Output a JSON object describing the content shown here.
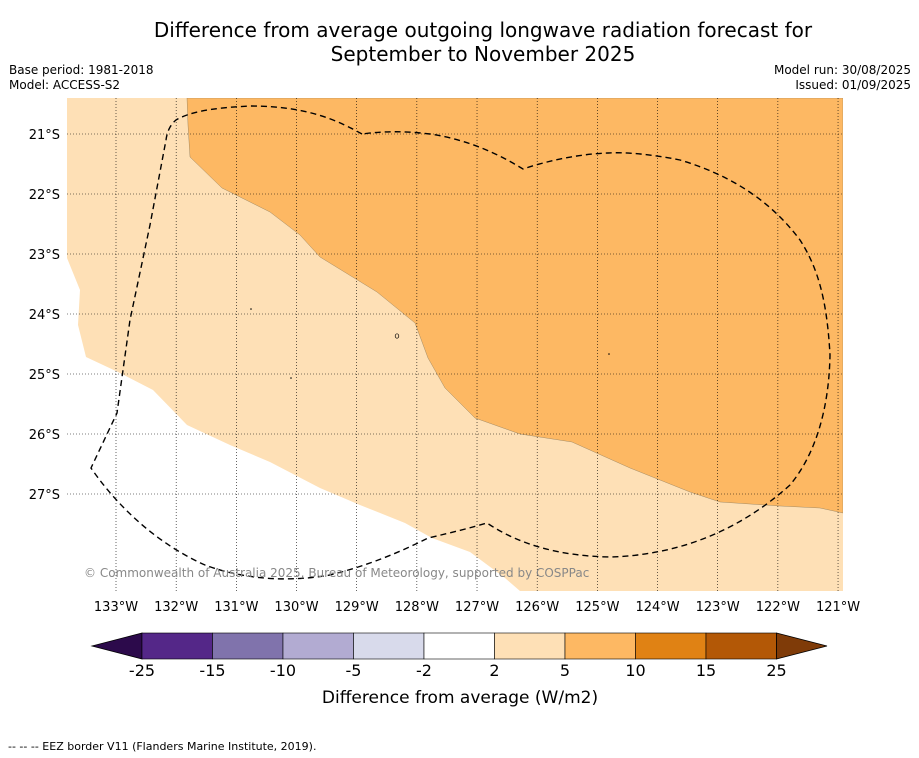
{
  "title_line1": "Difference from average outgoing longwave radiation forecast for",
  "title_line2": "September to November 2025",
  "base_period": "Base period: 1981-2018",
  "model": "Model: ACCESS-S2",
  "model_run": "Model run: 30/08/2025",
  "issued": "Issued: 01/09/2025",
  "copyright": "© Commonwealth of Australia 2025, Bureau of Meteorology, supported by COSPPac",
  "footnote": "-- -- -- EEZ border V11 (Flanders Marine Institute, 2019).",
  "map": {
    "lon_range": [
      -133.6,
      -120.9
    ],
    "lat_range": [
      -28.6,
      -20.6
    ],
    "lon_ticks": [
      "133°W",
      "132°W",
      "131°W",
      "130°W",
      "129°W",
      "128°W",
      "127°W",
      "126°W",
      "125°W",
      "124°W",
      "123°W",
      "122°W",
      "121°W"
    ],
    "lat_ticks": [
      "21°S",
      "22°S",
      "23°S",
      "24°S",
      "25°S",
      "26°S",
      "27°S"
    ]
  },
  "legend": {
    "title": "Difference from average (W/m2)",
    "tick_labels": [
      "-25",
      "-15",
      "-10",
      "-5",
      "-2",
      "2",
      "5",
      "10",
      "15",
      "25"
    ],
    "colors": [
      "#2c0a4b",
      "#542788",
      "#8073ac",
      "#b2abd2",
      "#d8daeb",
      "#ffffff",
      "#fee0b6",
      "#fdb863",
      "#e08214",
      "#b35806",
      "#7f3b08"
    ]
  },
  "colors": {
    "band_2_5": "#fee0b6",
    "band_5_10": "#fdb863",
    "band_neutral": "#ffffff"
  }
}
